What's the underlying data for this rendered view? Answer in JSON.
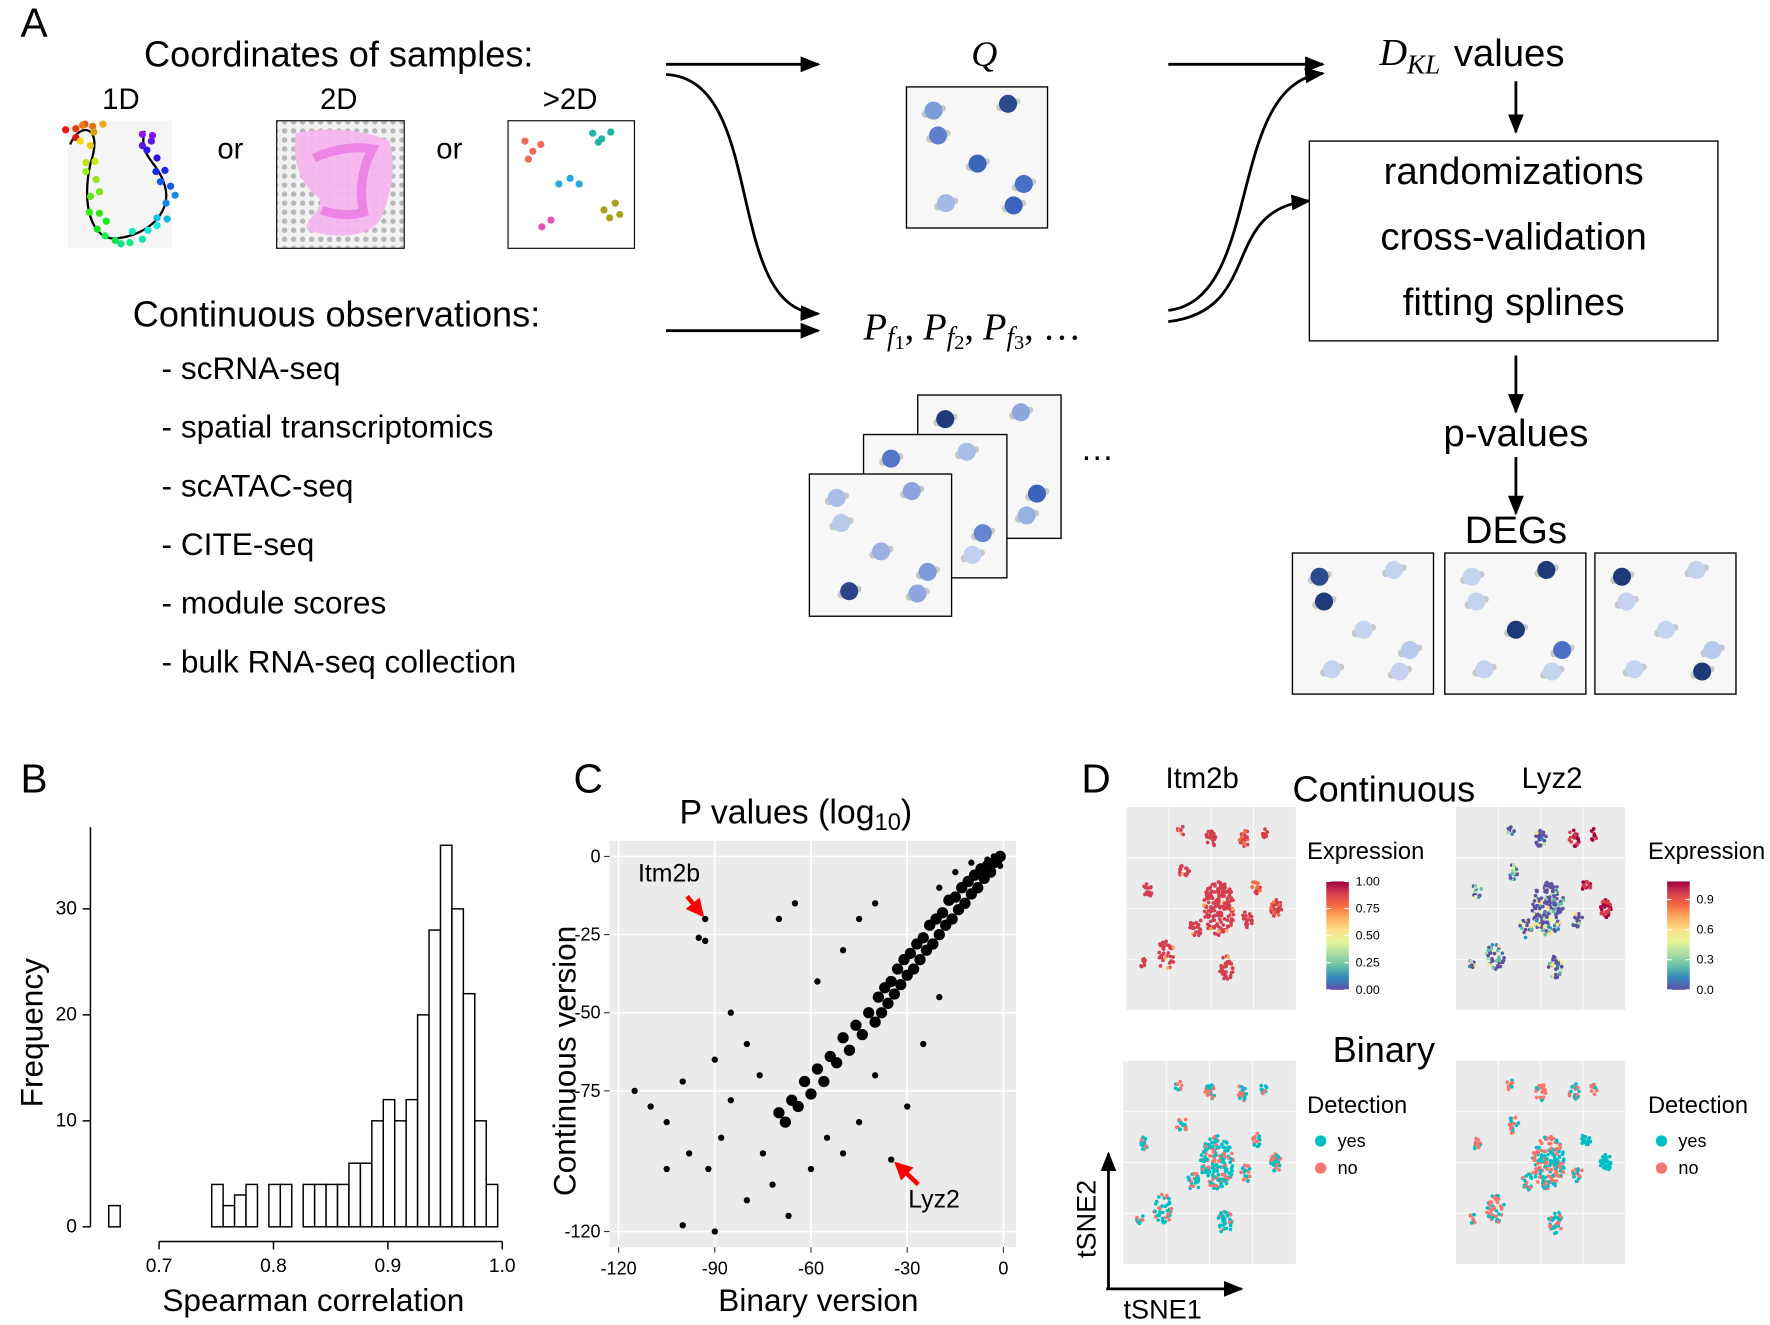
{
  "figure": {
    "panel_labels": [
      "A",
      "B",
      "C",
      "D"
    ],
    "panel_a": {
      "coordinates_title": "Coordinates of samples:",
      "coordinate_types": [
        "1D",
        "2D",
        ">2D"
      ],
      "separators": [
        "or",
        "or"
      ],
      "observations_title": "Continuous observations:",
      "observations": [
        "- scRNA-seq",
        "- spatial transcriptomics",
        "- scATAC-seq",
        "- CITE-seq",
        "- module scores",
        "- bulk RNA-seq collection"
      ],
      "q_label": "Q",
      "p_label": {
        "terms": [
          {
            "base": "P",
            "sub": "f",
            "index": "1"
          },
          {
            "base": "P",
            "sub": "f",
            "index": "2"
          },
          {
            "base": "P",
            "sub": "f",
            "index": "3"
          }
        ],
        "separator": ",",
        "ellipsis": "…"
      },
      "stack_ellipsis": "…",
      "dkl": {
        "base": "D",
        "sub": "KL",
        "rest": "values"
      },
      "box_lines": [
        "randomizations",
        "cross-validation",
        "fitting splines"
      ],
      "pvalues": "p-values",
      "degs": "DEGs"
    },
    "panel_d": {
      "genes": [
        "Itm2b",
        "Lyz2"
      ],
      "continuous_title": "Continuous",
      "binary_title": "Binary",
      "expression_colors": [
        "#5e4fa2",
        "#3288bd",
        "#66c2a5",
        "#abdda4",
        "#e6f598",
        "#fee08b",
        "#fdae61",
        "#f46d43",
        "#d53e4f",
        "#9e0142"
      ],
      "expression_legends": [
        {
          "title": "Expression",
          "lim": [
            0,
            1
          ],
          "ticks": [
            {
              "value": 1,
              "label": "1.00"
            },
            0.75,
            {
              "value": 0.5,
              "label": "0.50"
            },
            0.25,
            {
              "value": 0,
              "label": "0.00"
            }
          ]
        },
        {
          "title": "Expression",
          "lim": [
            0,
            1.08
          ],
          "ticks": [
            0.9,
            0.6,
            0.3,
            {
              "value": 0,
              "label": "0.0"
            }
          ]
        }
      ],
      "detection_legends": [
        {
          "title": "Detection",
          "items": [
            {
              "name": "yes",
              "color": "#00bfc4"
            },
            {
              "name": "no",
              "color": "#f8766d"
            }
          ]
        },
        {
          "title": "Detection",
          "items": [
            {
              "name": "yes",
              "color": "#00bfc4"
            },
            {
              "name": "no",
              "color": "#f8766d"
            }
          ]
        }
      ],
      "x_axis": "tSNE1",
      "y_axis": "tSNE2"
    }
  },
  "chart_data": [
    {
      "type": "histogram",
      "xlabel": "Spearman correlation",
      "ylabel": "Frequency",
      "bins": [
        0.656,
        0.666,
        0.676,
        0.686,
        0.696,
        0.706,
        0.716,
        0.726,
        0.736,
        0.746,
        0.756,
        0.766,
        0.776,
        0.786,
        0.796,
        0.806,
        0.816,
        0.826,
        0.836,
        0.846,
        0.856,
        0.866,
        0.876,
        0.886,
        0.896,
        0.906,
        0.916,
        0.926,
        0.936,
        0.946,
        0.956,
        0.966,
        0.976,
        0.986,
        0.996
      ],
      "counts": [
        2,
        0,
        0,
        0,
        0,
        0,
        0,
        0,
        0,
        4,
        2,
        3,
        4,
        0,
        4,
        4,
        0,
        4,
        4,
        4,
        4,
        6,
        6,
        10,
        12,
        10,
        12,
        20,
        28,
        36,
        30,
        22,
        10,
        4
      ],
      "xlim": [
        0.64,
        1.01
      ],
      "ylim": [
        0,
        37.7
      ],
      "xticks": [
        0.7,
        0.8,
        0.9,
        {
          "value": 1,
          "label": "1.0"
        }
      ],
      "yticks": [
        0,
        10,
        20,
        30
      ],
      "fill": "#ffffff",
      "edgecolor": "#000000",
      "grid": false
    },
    {
      "type": "scatter",
      "title": "P values (log",
      "title_sub": "10",
      "title_end": ")",
      "xlabel": "Binary version",
      "ylabel": "Continuous version",
      "x": [
        -1,
        -2,
        -3,
        -4,
        -5,
        -6,
        -7,
        -8,
        -9,
        -10,
        -11,
        -12,
        -13,
        -14,
        -15,
        -16,
        -17,
        -18,
        -19,
        -20,
        -21,
        -22,
        -23,
        -24,
        -25,
        -26,
        -27,
        -28,
        -29,
        -30,
        -31,
        -32,
        -33,
        -34,
        -35,
        -36,
        -37,
        -38,
        -39,
        -40,
        -42,
        -44,
        -46,
        -48,
        -50,
        -52,
        -54,
        -56,
        -58,
        -60,
        -62,
        -64,
        -66,
        -68,
        -70,
        -93,
        -95,
        -93,
        -115,
        -110,
        -105,
        -100,
        -98,
        -92,
        -88,
        -85,
        -80,
        -75,
        -72,
        -67,
        -90,
        -100,
        -105,
        -60,
        -55,
        -50,
        -45,
        -40,
        -35,
        -30,
        -25,
        -20,
        -65,
        -70,
        -58,
        -50,
        -45,
        -40,
        -80,
        -85,
        -76,
        -90,
        -20,
        -15,
        -10,
        -5,
        -3,
        -1,
        -2
      ],
      "y": [
        0,
        -1,
        -2,
        -5,
        -3,
        -7,
        -4,
        -10,
        -6,
        -12,
        -8,
        -15,
        -10,
        -17,
        -13,
        -20,
        -14,
        -22,
        -18,
        -25,
        -20,
        -28,
        -22,
        -30,
        -26,
        -33,
        -28,
        -36,
        -31,
        -38,
        -33,
        -41,
        -36,
        -44,
        -40,
        -47,
        -42,
        -50,
        -45,
        -53,
        -50,
        -57,
        -54,
        -62,
        -58,
        -66,
        -64,
        -72,
        -68,
        -76,
        -72,
        -80,
        -78,
        -85,
        -82,
        -20,
        -26,
        -27,
        -75,
        -80,
        -85,
        -72,
        -95,
        -100,
        -90,
        -78,
        -110,
        -95,
        -105,
        -115,
        -120,
        -118,
        -100,
        -100,
        -90,
        -95,
        -85,
        -70,
        -97,
        -80,
        -60,
        -45,
        -15,
        -20,
        -40,
        -30,
        -20,
        -15,
        -60,
        -50,
        -70,
        -65,
        -10,
        -5,
        -2,
        -1,
        0,
        -3,
        0
      ],
      "xlim": [
        -122.8,
        3.9
      ],
      "ylim": [
        -125,
        5
      ],
      "xticks": [
        -120,
        -90,
        -60,
        -30,
        0
      ],
      "yticks": [
        0,
        -25,
        -50,
        -75,
        -120
      ],
      "color": "#000000",
      "grid": true,
      "annotations": [
        {
          "text": "Itm2b",
          "x": -93,
          "y": -20,
          "color": "#ff0000"
        },
        {
          "text": "Lyz2",
          "x": -35,
          "y": -97,
          "color": "#ff0000"
        }
      ]
    }
  ]
}
